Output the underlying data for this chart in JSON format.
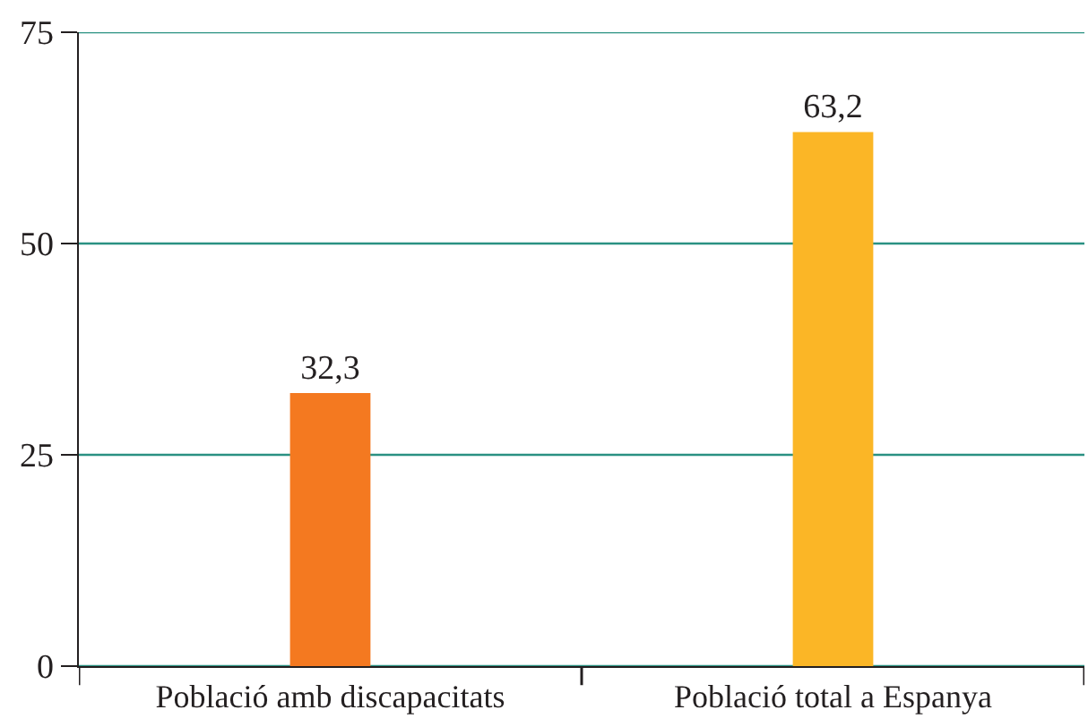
{
  "chart_data": {
    "type": "bar",
    "categories": [
      "Població amb discapacitats",
      "Població total a Espanya"
    ],
    "values": [
      32.3,
      63.2
    ],
    "colors": [
      "#f47920",
      "#fbb626"
    ],
    "value_labels": [
      "32,3",
      "63,2"
    ],
    "ylim": [
      0,
      75
    ],
    "yticks": [
      0,
      25,
      50,
      75
    ],
    "grid": "y"
  }
}
